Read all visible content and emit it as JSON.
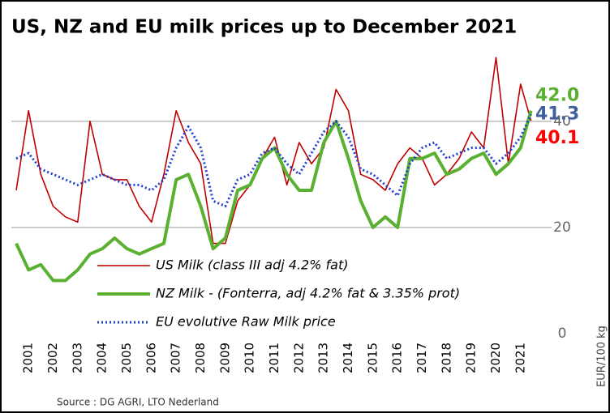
{
  "chart_data": {
    "type": "line",
    "title": "US, NZ and EU milk prices up to December 2021",
    "y_label": "EUR/100 kg",
    "source": "Source : DG AGRI, LTO Nederland",
    "x": [
      2001,
      2001.5,
      2002,
      2002.5,
      2003,
      2003.5,
      2004,
      2004.5,
      2005,
      2005.5,
      2006,
      2006.5,
      2007,
      2007.5,
      2008,
      2008.5,
      2009,
      2009.5,
      2010,
      2010.5,
      2011,
      2011.5,
      2012,
      2012.5,
      2013,
      2013.5,
      2014,
      2014.5,
      2015,
      2015.5,
      2016,
      2016.5,
      2017,
      2017.5,
      2018,
      2018.5,
      2019,
      2019.5,
      2020,
      2020.5,
      2021,
      2021.5,
      2021.92
    ],
    "series": [
      {
        "name": "US Milk (class III adj 4.2% fat)",
        "color": "#c00000",
        "style": "solid",
        "values": [
          27,
          42,
          30,
          24,
          22,
          21,
          40,
          30,
          29,
          29,
          24,
          21,
          30,
          42,
          36,
          32,
          17,
          17,
          25,
          28,
          33,
          37,
          28,
          36,
          32,
          35,
          46,
          42,
          30,
          29,
          27,
          32,
          35,
          33,
          28,
          30,
          33,
          38,
          35,
          52,
          32,
          47,
          40.1
        ]
      },
      {
        "name": "NZ Milk - (Fonterra, adj 4.2% fat & 3.35% prot)",
        "color": "#5ab030",
        "style": "thick",
        "values": [
          17,
          12,
          13,
          10,
          10,
          12,
          15,
          16,
          18,
          16,
          15,
          16,
          17,
          29,
          30,
          24,
          16,
          18,
          27,
          28,
          33,
          35,
          30,
          27,
          27,
          36,
          40,
          33,
          25,
          20,
          22,
          20,
          33,
          33,
          34,
          30,
          31,
          33,
          34,
          30,
          32,
          35,
          42.0
        ]
      },
      {
        "name": "EU evolutive Raw Milk price",
        "color": "#1f3fd0",
        "style": "dotted",
        "values": [
          33,
          34,
          31,
          30,
          29,
          28,
          29,
          30,
          29,
          28,
          28,
          27,
          29,
          35,
          39,
          35,
          25,
          24,
          29,
          30,
          34,
          35,
          32,
          30,
          34,
          38,
          40,
          37,
          31,
          30,
          28,
          26,
          32,
          35,
          36,
          33,
          34,
          35,
          35,
          32,
          34,
          37,
          41.3
        ]
      }
    ],
    "annotations": [
      {
        "text": "42.0",
        "y": 42.0,
        "color": "#5ab030"
      },
      {
        "text": "41.3",
        "y": 41.3,
        "color": "#3f5f9f"
      },
      {
        "text": "40.1",
        "y": 40.1,
        "color": "#ff0000"
      }
    ],
    "xlim": [
      2001,
      2022
    ],
    "xticks": [
      2001,
      2002,
      2003,
      2004,
      2005,
      2006,
      2007,
      2008,
      2009,
      2010,
      2011,
      2012,
      2013,
      2014,
      2015,
      2016,
      2017,
      2018,
      2019,
      2020,
      2021
    ],
    "ylim": [
      0,
      54
    ],
    "yticks": [
      0,
      20,
      40
    ],
    "grid": true,
    "legend": "lower-left"
  }
}
